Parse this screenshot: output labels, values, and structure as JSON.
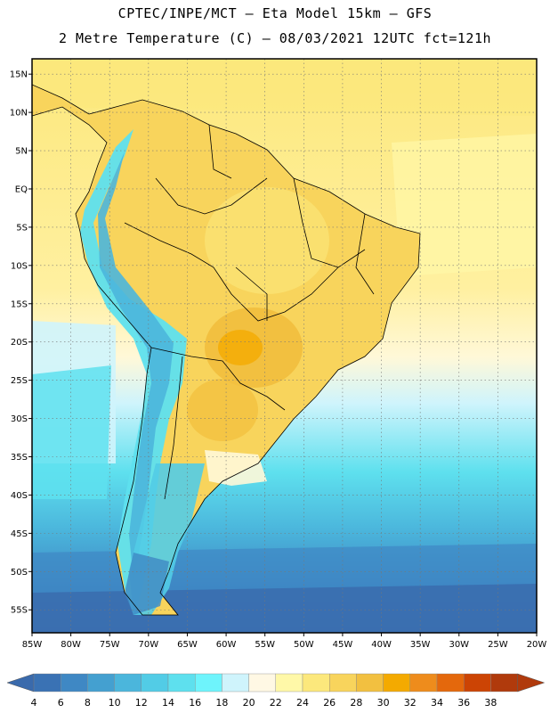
{
  "header": {
    "line1": "CPTEC/INPE/MCT –  Eta Model 15km – GFS",
    "line2": "2 Metre Temperature (C) – 08/03/2021 12UTC fct=121h"
  },
  "map": {
    "lon_range": [
      -85,
      -20
    ],
    "lat_range": [
      -58,
      17
    ],
    "lat_ticks": [
      {
        "value": 15,
        "label": "15N"
      },
      {
        "value": 10,
        "label": "10N"
      },
      {
        "value": 5,
        "label": "5N"
      },
      {
        "value": 0,
        "label": "EQ"
      },
      {
        "value": -5,
        "label": "5S"
      },
      {
        "value": -10,
        "label": "10S"
      },
      {
        "value": -15,
        "label": "15S"
      },
      {
        "value": -20,
        "label": "20S"
      },
      {
        "value": -25,
        "label": "25S"
      },
      {
        "value": -30,
        "label": "30S"
      },
      {
        "value": -35,
        "label": "35S"
      },
      {
        "value": -40,
        "label": "40S"
      },
      {
        "value": -45,
        "label": "45S"
      },
      {
        "value": -50,
        "label": "50S"
      },
      {
        "value": -55,
        "label": "55S"
      }
    ],
    "lon_ticks": [
      {
        "value": -85,
        "label": "85W"
      },
      {
        "value": -80,
        "label": "80W"
      },
      {
        "value": -75,
        "label": "75W"
      },
      {
        "value": -70,
        "label": "70W"
      },
      {
        "value": -65,
        "label": "65W"
      },
      {
        "value": -60,
        "label": "60W"
      },
      {
        "value": -55,
        "label": "55W"
      },
      {
        "value": -50,
        "label": "50W"
      },
      {
        "value": -45,
        "label": "45W"
      },
      {
        "value": -40,
        "label": "40W"
      },
      {
        "value": -35,
        "label": "35W"
      },
      {
        "value": -30,
        "label": "30W"
      },
      {
        "value": -25,
        "label": "25W"
      },
      {
        "value": -20,
        "label": "20W"
      }
    ],
    "grid": true
  },
  "colorbar": {
    "labels": [
      "4",
      "6",
      "8",
      "10",
      "12",
      "14",
      "16",
      "18",
      "20",
      "22",
      "24",
      "26",
      "28",
      "30",
      "32",
      "34",
      "36",
      "38"
    ],
    "colors": [
      "#3a72b4",
      "#3f88c4",
      "#44a0d0",
      "#4bb6dc",
      "#52cce6",
      "#5ee0ee",
      "#6ef4fc",
      "#cff4fc",
      "#fff8e4",
      "#fff8a8",
      "#fce87c",
      "#f8d45c",
      "#f2c040",
      "#f4aa00",
      "#ee8c1c",
      "#e4680c",
      "#cc4404",
      "#b03a0c"
    ],
    "left_arrow_color": "#3a6aac",
    "right_arrow_color": "#b03a0c"
  }
}
